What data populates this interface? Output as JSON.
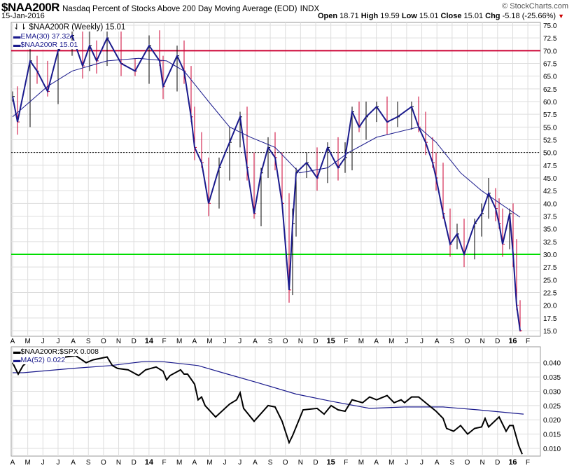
{
  "header": {
    "symbol": "$NAA200R",
    "name": "Nasdaq Percent of Stocks Above 200 Day Moving Average (EOD)",
    "exchange": "INDX",
    "brand": "© StockCharts.com",
    "date": "15-Jan-2016",
    "open_label": "Open",
    "open": "18.71",
    "high_label": "High",
    "high": "19.59",
    "low_label": "Low",
    "low": "15.01",
    "close_label": "Close",
    "close": "15.01",
    "chg_label": "Chg",
    "chg": "-5.18 (-25.66%)"
  },
  "legend_main": {
    "series": "$NAA200R (Weekly) 15.01",
    "ema": "EMA(30) 37.32",
    "close": "$NAA200R 15.01"
  },
  "legend_lower": {
    "ratio": "$NAA200R:$SPX 0.008",
    "ma": "MA(52) 0.022"
  },
  "colors": {
    "price": "#1a1a8c",
    "ema": "#1a1a8c",
    "red_line": "#cc0033",
    "green_line": "#00dd00",
    "ratio": "#000000",
    "ma": "#1a1a8c",
    "up_bar": "#000000",
    "down_bar": "#cc0033"
  },
  "chart_data": [
    {
      "type": "line",
      "title": "$NAA200R (Weekly)",
      "ylim": [
        15,
        75
      ],
      "yticks": [
        "75.0",
        "72.5",
        "70.0",
        "67.5",
        "65.0",
        "62.5",
        "60.0",
        "57.5",
        "55.0",
        "52.5",
        "50.0",
        "47.5",
        "45.0",
        "42.5",
        "40.0",
        "37.5",
        "35.0",
        "32.5",
        "30.0",
        "27.5",
        "25.0",
        "22.5",
        "20.0",
        "17.5",
        "15.0"
      ],
      "reference_lines": [
        70,
        50,
        30
      ],
      "x_unit": "week index from Apr 2013",
      "close": [
        [
          0,
          61
        ],
        [
          1.4,
          56
        ],
        [
          5,
          68
        ],
        [
          7,
          66
        ],
        [
          10,
          62
        ],
        [
          13,
          70
        ],
        [
          17,
          73
        ],
        [
          20,
          67
        ],
        [
          22,
          71
        ],
        [
          24,
          68
        ],
        [
          27,
          72.5
        ],
        [
          31,
          67.5
        ],
        [
          35,
          66
        ],
        [
          39,
          71
        ],
        [
          42,
          68
        ],
        [
          43,
          63
        ],
        [
          47,
          69
        ],
        [
          49,
          66
        ],
        [
          51,
          57
        ],
        [
          52,
          51
        ],
        [
          54,
          48
        ],
        [
          56,
          40
        ],
        [
          59,
          47
        ],
        [
          62,
          52
        ],
        [
          65,
          57
        ],
        [
          67,
          47
        ],
        [
          69,
          38
        ],
        [
          71,
          46
        ],
        [
          73,
          51
        ],
        [
          75,
          49
        ],
        [
          77,
          40
        ],
        [
          79,
          23
        ],
        [
          80,
          36
        ],
        [
          81,
          46
        ],
        [
          84,
          48
        ],
        [
          87,
          45
        ],
        [
          90,
          51
        ],
        [
          93,
          47
        ],
        [
          95,
          49
        ],
        [
          97,
          58
        ],
        [
          99,
          55
        ],
        [
          101,
          57
        ],
        [
          104,
          59
        ],
        [
          107,
          56
        ],
        [
          110,
          57
        ],
        [
          114,
          59
        ],
        [
          116,
          55
        ],
        [
          118,
          52
        ],
        [
          120,
          48
        ],
        [
          121,
          45
        ],
        [
          123,
          38
        ],
        [
          125,
          32
        ],
        [
          127,
          34
        ],
        [
          129,
          30
        ],
        [
          132,
          36
        ],
        [
          134,
          38
        ],
        [
          136,
          42
        ],
        [
          138,
          39
        ],
        [
          139,
          36
        ],
        [
          140,
          32
        ],
        [
          142,
          38
        ],
        [
          143,
          30
        ],
        [
          144,
          20
        ],
        [
          145,
          15
        ]
      ],
      "ema30": [
        [
          0,
          57
        ],
        [
          10,
          63
        ],
        [
          17,
          66
        ],
        [
          27,
          68
        ],
        [
          36,
          68.5
        ],
        [
          44,
          68
        ],
        [
          49,
          66
        ],
        [
          56,
          60
        ],
        [
          62,
          55
        ],
        [
          68,
          53
        ],
        [
          75,
          51
        ],
        [
          82,
          46
        ],
        [
          90,
          47
        ],
        [
          96,
          50
        ],
        [
          104,
          53
        ],
        [
          116,
          55
        ],
        [
          121,
          52
        ],
        [
          128,
          46
        ],
        [
          134,
          42.5
        ],
        [
          145,
          37.3
        ]
      ]
    },
    {
      "type": "line",
      "title": "$NAA200R:$SPX",
      "ylim": [
        0.006,
        0.045
      ],
      "yticks": [
        "0.040",
        "0.035",
        "0.030",
        "0.025",
        "0.020",
        "0.015",
        "0.010"
      ],
      "ratio": [
        [
          0,
          0.04
        ],
        [
          1.6,
          0.036
        ],
        [
          3,
          0.039
        ],
        [
          4,
          0.04
        ],
        [
          18,
          0.0425
        ],
        [
          21,
          0.04
        ],
        [
          23,
          0.041
        ],
        [
          27,
          0.042
        ],
        [
          28.5,
          0.039
        ],
        [
          30,
          0.038
        ],
        [
          33,
          0.0375
        ],
        [
          36,
          0.0355
        ],
        [
          38,
          0.0375
        ],
        [
          41,
          0.0385
        ],
        [
          43,
          0.037
        ],
        [
          44,
          0.034
        ],
        [
          45,
          0.0355
        ],
        [
          48,
          0.0375
        ],
        [
          49,
          0.036
        ],
        [
          50,
          0.036
        ],
        [
          52,
          0.0325
        ],
        [
          53,
          0.027
        ],
        [
          54,
          0.028
        ],
        [
          55,
          0.025
        ],
        [
          58,
          0.021
        ],
        [
          62,
          0.0255
        ],
        [
          64,
          0.027
        ],
        [
          65,
          0.0295
        ],
        [
          66,
          0.024
        ],
        [
          69,
          0.0195
        ],
        [
          73,
          0.025
        ],
        [
          75,
          0.0245
        ],
        [
          77,
          0.0195
        ],
        [
          79,
          0.012
        ],
        [
          80,
          0.0145
        ],
        [
          83,
          0.0235
        ],
        [
          87,
          0.024
        ],
        [
          89,
          0.022
        ],
        [
          91,
          0.025
        ],
        [
          93,
          0.0235
        ],
        [
          95,
          0.023
        ],
        [
          97,
          0.027
        ],
        [
          100,
          0.026
        ],
        [
          102,
          0.028
        ],
        [
          104,
          0.027
        ],
        [
          107,
          0.0285
        ],
        [
          109,
          0.026
        ],
        [
          111,
          0.027
        ],
        [
          112,
          0.026
        ],
        [
          114,
          0.028
        ],
        [
          116,
          0.028
        ],
        [
          119,
          0.025
        ],
        [
          121,
          0.023
        ],
        [
          123,
          0.0205
        ],
        [
          124,
          0.017
        ],
        [
          126,
          0.016
        ],
        [
          128,
          0.018
        ],
        [
          130,
          0.015
        ],
        [
          132,
          0.017
        ],
        [
          134,
          0.0175
        ],
        [
          135,
          0.0205
        ],
        [
          136,
          0.0175
        ],
        [
          139,
          0.021
        ],
        [
          141,
          0.016
        ],
        [
          142,
          0.018
        ],
        [
          143,
          0.018
        ],
        [
          144.6,
          0.011
        ],
        [
          145.6,
          0.008
        ]
      ],
      "ma52": [
        [
          0,
          0.0365
        ],
        [
          3,
          0.0365
        ],
        [
          17,
          0.038
        ],
        [
          28,
          0.039
        ],
        [
          38,
          0.0405
        ],
        [
          42,
          0.0405
        ],
        [
          53,
          0.039
        ],
        [
          60,
          0.0365
        ],
        [
          70,
          0.033
        ],
        [
          81,
          0.029
        ],
        [
          91,
          0.0265
        ],
        [
          102,
          0.024
        ],
        [
          112,
          0.0245
        ],
        [
          123,
          0.0245
        ],
        [
          133,
          0.0235
        ],
        [
          146,
          0.022
        ]
      ]
    }
  ],
  "x_labels": [
    "A",
    "M",
    "J",
    "J",
    "A",
    "S",
    "O",
    "N",
    "D",
    "14",
    "F",
    "M",
    "A",
    "M",
    "J",
    "J",
    "A",
    "S",
    "O",
    "N",
    "D",
    "15",
    "F",
    "M",
    "A",
    "M",
    "J",
    "J",
    "A",
    "S",
    "O",
    "N",
    "D",
    "16",
    "F"
  ]
}
